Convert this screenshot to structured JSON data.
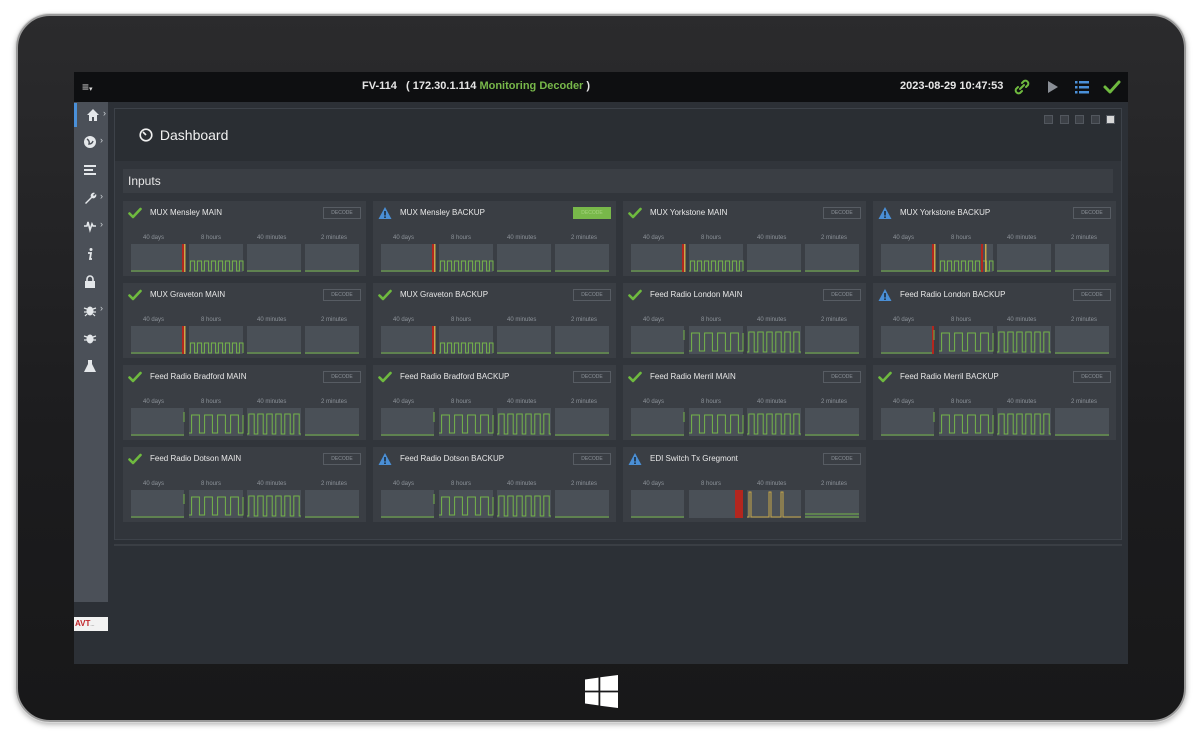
{
  "topbar": {
    "device": "FV-114",
    "open_paren": "(",
    "ip": "172.30.1.114",
    "role": "Monitoring Decoder",
    "close_paren": ")",
    "datetime": "2023-08-29 10:47:53",
    "icons": [
      "hamburger-menu-icon",
      "link-icon",
      "play-icon",
      "list-icon",
      "check-icon"
    ]
  },
  "sidebar": {
    "items": [
      "home-icon",
      "globe-icon",
      "lines-icon",
      "wrench-icon",
      "pulse-icon",
      "info-icon",
      "lock-icon",
      "bug-icon",
      "bug-icon-2",
      "flask-icon"
    ],
    "logo_text": "AVT",
    "logo_sub": "..."
  },
  "dashboard": {
    "title": "Dashboard"
  },
  "section": {
    "title": "Inputs"
  },
  "period_labels": [
    "40 days",
    "8 hours",
    "40 minutes",
    "2 minutes"
  ],
  "decode_label": "DECODE",
  "colors": {
    "ok": "#6fba3f",
    "warn": "#4a8fd6",
    "graph_bg": "#4a5057",
    "line": "#74b44a",
    "alarm": "#b3261e"
  },
  "inputs": [
    {
      "name": "MUX Mensley MAIN",
      "status": "ok",
      "decoding": false,
      "pattern": "a"
    },
    {
      "name": "MUX Mensley BACKUP",
      "status": "warn",
      "decoding": true,
      "pattern": "a"
    },
    {
      "name": "MUX Yorkstone MAIN",
      "status": "ok",
      "decoding": false,
      "pattern": "a"
    },
    {
      "name": "MUX Yorkstone BACKUP",
      "status": "warn",
      "decoding": false,
      "pattern": "c"
    },
    {
      "name": "MUX Graveton MAIN",
      "status": "ok",
      "decoding": false,
      "pattern": "a"
    },
    {
      "name": "MUX Graveton BACKUP",
      "status": "ok",
      "decoding": false,
      "pattern": "a"
    },
    {
      "name": "Feed Radio London MAIN",
      "status": "ok",
      "decoding": false,
      "pattern": "b"
    },
    {
      "name": "Feed Radio London BACKUP",
      "status": "warn",
      "decoding": false,
      "pattern": "d"
    },
    {
      "name": "Feed Radio Bradford MAIN",
      "status": "ok",
      "decoding": false,
      "pattern": "b"
    },
    {
      "name": "Feed Radio Bradford BACKUP",
      "status": "ok",
      "decoding": false,
      "pattern": "b"
    },
    {
      "name": "Feed Radio Merril MAIN",
      "status": "ok",
      "decoding": false,
      "pattern": "b"
    },
    {
      "name": "Feed Radio Merril BACKUP",
      "status": "ok",
      "decoding": false,
      "pattern": "b"
    },
    {
      "name": "Feed Radio Dotson MAIN",
      "status": "ok",
      "decoding": false,
      "pattern": "b"
    },
    {
      "name": "Feed Radio Dotson BACKUP",
      "status": "warn",
      "decoding": false,
      "pattern": "b"
    },
    {
      "name": "EDI Switch Tx Gregmont",
      "status": "warn",
      "decoding": false,
      "pattern": "e"
    }
  ]
}
